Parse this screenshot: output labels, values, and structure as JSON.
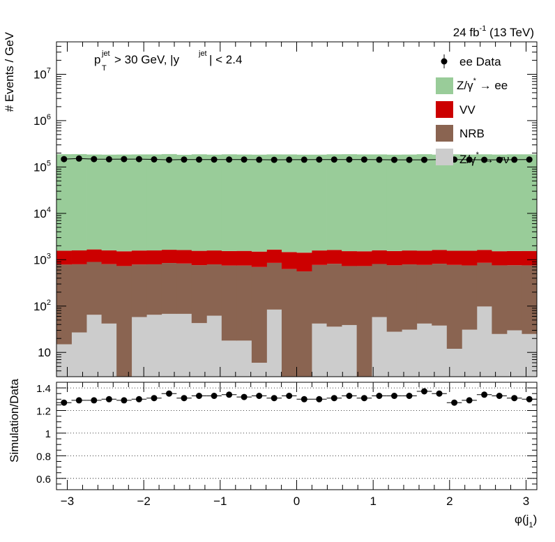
{
  "header": {
    "lumi_value": "24 fb",
    "lumi_exp": "-1",
    "lumi_energy": " (13 TeV)"
  },
  "cuts": {
    "pt_p": "p",
    "pt_sup": "jet",
    "pt_sub": "T",
    "pt_rest": " > 30 GeV,  |y",
    "y_sup": "jet",
    "y_rest": "| < 2.4"
  },
  "legend": {
    "data_label": "ee Data",
    "zee_label": "Z/γ",
    "zee_sup": "*",
    "zee_rest": " → ee",
    "vv_label": "VV",
    "nrb_label": "NRB",
    "znn_label": "Z/γ",
    "znn_sup": "*",
    "znn_rest": " → νν"
  },
  "colors": {
    "zee": "#99cc99",
    "vv": "#cc0000",
    "nrb": "#8a6451",
    "znn": "#cccccc",
    "data": "#000000"
  },
  "chart_data": [
    {
      "type": "bar",
      "stacked": true,
      "log_y": true,
      "ylabel": "# Events / GeV",
      "xlim": [
        -3.1416,
        3.1416
      ],
      "ylim": [
        3,
        50000000
      ],
      "y_tick_labels": [
        "10",
        "10^2",
        "10^3",
        "10^4",
        "10^5",
        "10^6",
        "10^7"
      ],
      "bin_edges": [
        -3.1416,
        -2.9452,
        -2.7489,
        -2.5525,
        -2.3562,
        -2.1598,
        -1.9635,
        -1.7671,
        -1.5708,
        -1.3744,
        -1.1781,
        -0.9817,
        -0.7854,
        -0.589,
        -0.3927,
        -0.1963,
        0.0,
        0.1963,
        0.3927,
        0.589,
        0.7854,
        0.9817,
        1.1781,
        1.3744,
        1.5708,
        1.7671,
        1.9635,
        2.1598,
        2.3562,
        2.5525,
        2.7489,
        2.9452,
        3.1416
      ],
      "series": [
        {
          "name": "Z/γ* → νν",
          "values": [
            15,
            27,
            65,
            42,
            0,
            58,
            65,
            68,
            68,
            43,
            62,
            18,
            18,
            6,
            84,
            0,
            0,
            42,
            36,
            39,
            0,
            58,
            28,
            31,
            42,
            38,
            12,
            31,
            98,
            25,
            30,
            25
          ]
        },
        {
          "name": "NRB",
          "values": [
            770,
            770,
            830,
            760,
            730,
            730,
            730,
            780,
            760,
            720,
            730,
            730,
            730,
            690,
            770,
            630,
            560,
            730,
            780,
            690,
            730,
            750,
            730,
            760,
            730,
            780,
            760,
            720,
            760,
            730,
            730,
            730
          ]
        },
        {
          "name": "VV",
          "values": [
            780,
            790,
            770,
            790,
            790,
            790,
            790,
            790,
            790,
            790,
            790,
            790,
            800,
            800,
            800,
            830,
            860,
            810,
            810,
            800,
            790,
            790,
            780,
            790,
            790,
            810,
            790,
            810,
            770,
            770,
            780,
            790
          ]
        },
        {
          "name": "Z/γ* → ee",
          "values": [
            187000,
            188000,
            184000,
            183000,
            184000,
            185000,
            185000,
            188000,
            182000,
            186000,
            183000,
            186000,
            184000,
            183000,
            185000,
            185000,
            183000,
            183000,
            186000,
            187000,
            185000,
            185000,
            183000,
            184000,
            187000,
            183000,
            186000,
            184000,
            186000,
            184000,
            186000,
            186000
          ]
        }
      ],
      "data_series": {
        "name": "ee Data",
        "values": [
          148000,
          152000,
          148000,
          147000,
          148000,
          148000,
          146000,
          143000,
          145000,
          145000,
          145000,
          145000,
          145000,
          144000,
          143000,
          144000,
          144000,
          145000,
          145000,
          145000,
          145000,
          144000,
          143000,
          143000,
          143000,
          145000,
          145000,
          144000,
          143000,
          143000,
          144000,
          145000
        ]
      }
    },
    {
      "type": "scatter",
      "xlabel": "φ(j",
      "xlabel_sub": "1",
      "xlabel_close": ")",
      "ylabel": "Simulation/Data",
      "xlim": [
        -3.1416,
        3.1416
      ],
      "ylim": [
        0.5,
        1.45
      ],
      "x_tick_labels": [
        "−3",
        "−2",
        "−1",
        "0",
        "1",
        "2",
        "3"
      ],
      "y_tick_labels": [
        "0.6",
        "0.8",
        "1",
        "1.2",
        "1.4"
      ],
      "grid": true,
      "values": [
        1.27,
        1.29,
        1.29,
        1.3,
        1.29,
        1.3,
        1.31,
        1.35,
        1.31,
        1.33,
        1.33,
        1.34,
        1.32,
        1.33,
        1.31,
        1.33,
        1.3,
        1.3,
        1.31,
        1.33,
        1.31,
        1.33,
        1.33,
        1.33,
        1.37,
        1.35,
        1.27,
        1.29,
        1.34,
        1.33,
        1.31,
        1.3
      ]
    }
  ]
}
